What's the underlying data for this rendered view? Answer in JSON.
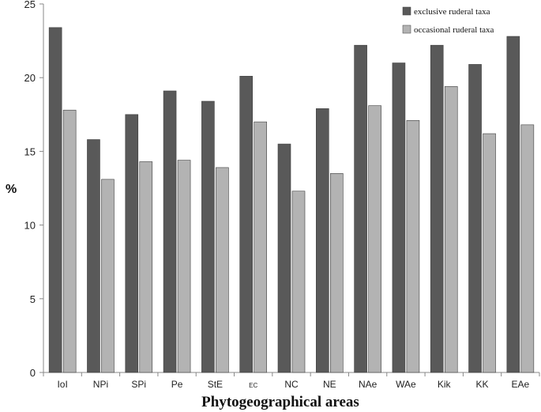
{
  "chart_data": {
    "type": "bar",
    "title": "",
    "xlabel": "Phytogeographical areas",
    "ylabel": "%",
    "ylim": [
      0,
      25
    ],
    "yticks": [
      0,
      5,
      10,
      15,
      20,
      25
    ],
    "categories": [
      "IoI",
      "NPi",
      "SPi",
      "Pe",
      "StE",
      "EC",
      "NC",
      "NE",
      "NAe",
      "WAe",
      "Kik",
      "KK",
      "EAe"
    ],
    "series": [
      {
        "name": "exclusive ruderal taxa",
        "color": "#595959",
        "values": [
          23.4,
          15.8,
          17.5,
          19.1,
          18.4,
          20.1,
          15.5,
          17.9,
          22.2,
          21.0,
          22.2,
          20.9,
          22.8
        ]
      },
      {
        "name": "occasional ruderal taxa",
        "color": "#b3b3b3",
        "values": [
          17.8,
          13.1,
          14.3,
          14.4,
          13.9,
          17.0,
          12.3,
          13.5,
          18.1,
          17.1,
          19.4,
          16.2,
          16.8
        ]
      }
    ],
    "legend_position": "top-right",
    "grid": false
  }
}
